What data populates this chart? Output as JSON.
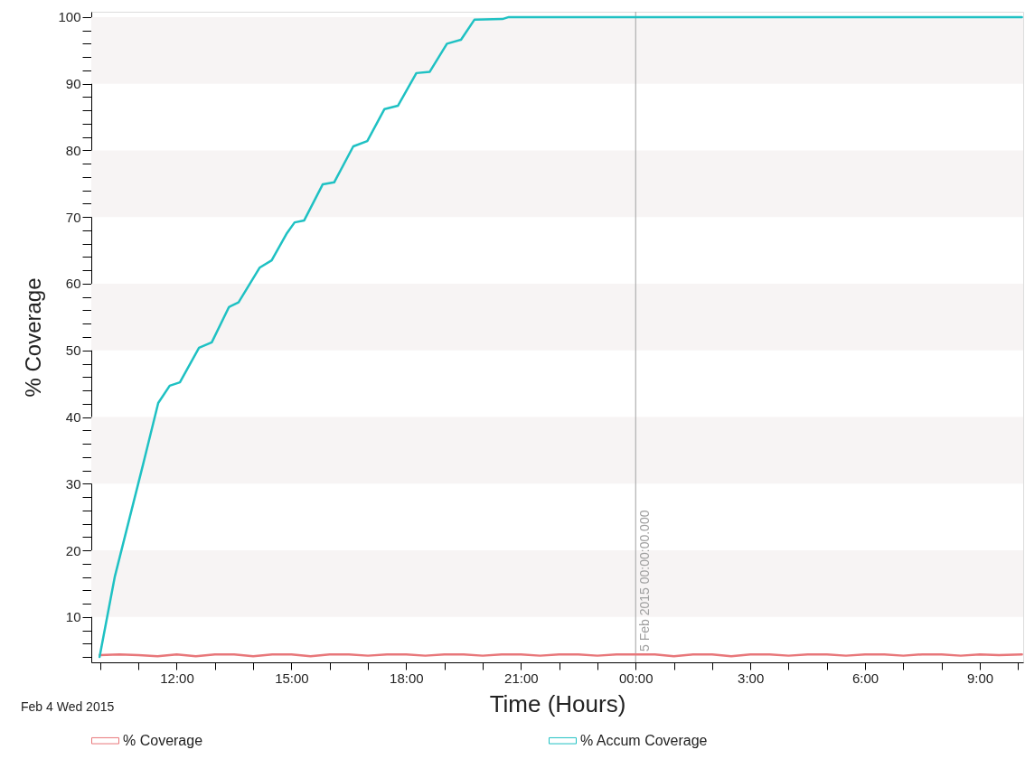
{
  "chart_data": {
    "type": "line",
    "xlabel": "Time (Hours)",
    "ylabel": "% Coverage",
    "xlim": [
      "2015-02-04T09:46",
      "2015-02-05T10:08"
    ],
    "ylim": [
      3.2,
      100.8
    ],
    "xticks": [
      {
        "value": "2015-02-04T10:00",
        "label": null
      },
      {
        "value": "2015-02-04T11:00",
        "label": null
      },
      {
        "value": "2015-02-04T12:00",
        "label": "12:00"
      },
      {
        "value": "2015-02-04T13:00",
        "label": null
      },
      {
        "value": "2015-02-04T14:00",
        "label": null
      },
      {
        "value": "2015-02-04T15:00",
        "label": "15:00"
      },
      {
        "value": "2015-02-04T16:00",
        "label": null
      },
      {
        "value": "2015-02-04T17:00",
        "label": null
      },
      {
        "value": "2015-02-04T18:00",
        "label": "18:00"
      },
      {
        "value": "2015-02-04T19:00",
        "label": null
      },
      {
        "value": "2015-02-04T20:00",
        "label": null
      },
      {
        "value": "2015-02-04T21:00",
        "label": "21:00"
      },
      {
        "value": "2015-02-04T22:00",
        "label": null
      },
      {
        "value": "2015-02-04T23:00",
        "label": null
      },
      {
        "value": "2015-02-05T00:00",
        "label": "00:00"
      },
      {
        "value": "2015-02-05T01:00",
        "label": null
      },
      {
        "value": "2015-02-05T02:00",
        "label": null
      },
      {
        "value": "2015-02-05T03:00",
        "label": "3:00"
      },
      {
        "value": "2015-02-05T04:00",
        "label": null
      },
      {
        "value": "2015-02-05T05:00",
        "label": null
      },
      {
        "value": "2015-02-05T06:00",
        "label": "6:00"
      },
      {
        "value": "2015-02-05T07:00",
        "label": null
      },
      {
        "value": "2015-02-05T08:00",
        "label": null
      },
      {
        "value": "2015-02-05T09:00",
        "label": "9:00"
      },
      {
        "value": "2015-02-05T10:00",
        "label": null
      }
    ],
    "yticks": [
      {
        "value": 4,
        "label": null
      },
      {
        "value": 6,
        "label": null
      },
      {
        "value": 8,
        "label": null
      },
      10,
      {
        "value": 12,
        "label": null
      },
      {
        "value": 14,
        "label": null
      },
      {
        "value": 16,
        "label": null
      },
      {
        "value": 18,
        "label": null
      },
      20,
      {
        "value": 22,
        "label": null
      },
      {
        "value": 24,
        "label": null
      },
      {
        "value": 26,
        "label": null
      },
      {
        "value": 28,
        "label": null
      },
      30,
      {
        "value": 32,
        "label": null
      },
      {
        "value": 34,
        "label": null
      },
      {
        "value": 36,
        "label": null
      },
      {
        "value": 38,
        "label": null
      },
      40,
      {
        "value": 42,
        "label": null
      },
      {
        "value": 44,
        "label": null
      },
      {
        "value": 46,
        "label": null
      },
      {
        "value": 48,
        "label": null
      },
      50,
      {
        "value": 52,
        "label": null
      },
      {
        "value": 54,
        "label": null
      },
      {
        "value": 56,
        "label": null
      },
      {
        "value": 58,
        "label": null
      },
      60,
      {
        "value": 62,
        "label": null
      },
      {
        "value": 64,
        "label": null
      },
      {
        "value": 66,
        "label": null
      },
      {
        "value": 68,
        "label": null
      },
      70,
      {
        "value": 72,
        "label": null
      },
      {
        "value": 74,
        "label": null
      },
      {
        "value": 76,
        "label": null
      },
      {
        "value": 78,
        "label": null
      },
      80,
      {
        "value": 82,
        "label": null
      },
      {
        "value": 84,
        "label": null
      },
      {
        "value": 86,
        "label": null
      },
      {
        "value": 88,
        "label": null
      },
      90,
      {
        "value": 92,
        "label": null
      },
      {
        "value": 94,
        "label": null
      },
      {
        "value": 96,
        "label": null
      },
      {
        "value": 98,
        "label": null
      },
      100
    ],
    "grid": false,
    "legend": "bottom",
    "marker": "none",
    "line_style": "solid",
    "series": [
      {
        "name": "% Coverage",
        "color": "#e8777a",
        "x": [
          "2015-02-04T09:59",
          "2015-02-04T10:30",
          "2015-02-04T11:00",
          "2015-02-04T11:30",
          "2015-02-04T12:00",
          "2015-02-04T12:30",
          "2015-02-04T13:00",
          "2015-02-04T13:30",
          "2015-02-04T14:00",
          "2015-02-04T14:30",
          "2015-02-04T15:00",
          "2015-02-04T15:30",
          "2015-02-04T16:00",
          "2015-02-04T16:30",
          "2015-02-04T17:00",
          "2015-02-04T17:30",
          "2015-02-04T18:00",
          "2015-02-04T18:30",
          "2015-02-04T19:00",
          "2015-02-04T19:30",
          "2015-02-04T20:00",
          "2015-02-04T20:30",
          "2015-02-04T21:00",
          "2015-02-04T21:30",
          "2015-02-04T22:00",
          "2015-02-04T22:30",
          "2015-02-04T23:00",
          "2015-02-04T23:30",
          "2015-02-05T00:00",
          "2015-02-05T00:30",
          "2015-02-05T01:00",
          "2015-02-05T01:30",
          "2015-02-05T02:00",
          "2015-02-05T02:30",
          "2015-02-05T03:00",
          "2015-02-05T03:30",
          "2015-02-05T04:00",
          "2015-02-05T04:30",
          "2015-02-05T05:00",
          "2015-02-05T05:30",
          "2015-02-05T06:00",
          "2015-02-05T06:30",
          "2015-02-05T07:00",
          "2015-02-05T07:30",
          "2015-02-05T08:00",
          "2015-02-05T08:30",
          "2015-02-05T09:00",
          "2015-02-05T09:30",
          "2015-02-05T10:06"
        ],
        "values": [
          4.3,
          4.4,
          4.3,
          4.1,
          4.4,
          4.1,
          4.4,
          4.4,
          4.1,
          4.4,
          4.4,
          4.1,
          4.4,
          4.4,
          4.2,
          4.4,
          4.4,
          4.2,
          4.4,
          4.4,
          4.2,
          4.4,
          4.4,
          4.2,
          4.4,
          4.4,
          4.2,
          4.4,
          4.4,
          4.4,
          4.1,
          4.4,
          4.4,
          4.1,
          4.4,
          4.4,
          4.2,
          4.4,
          4.4,
          4.2,
          4.4,
          4.4,
          4.2,
          4.4,
          4.4,
          4.2,
          4.4,
          4.3,
          4.4
        ]
      },
      {
        "name": "% Accum Coverage",
        "color": "#1fc1c3",
        "x": [
          "2015-02-04T09:59",
          "2015-02-04T10:23",
          "2015-02-04T11:07",
          "2015-02-04T11:31",
          "2015-02-04T11:49",
          "2015-02-04T12:05",
          "2015-02-04T12:35",
          "2015-02-04T12:55",
          "2015-02-04T13:22",
          "2015-02-04T13:37",
          "2015-02-04T14:10",
          "2015-02-04T14:29",
          "2015-02-04T14:53",
          "2015-02-04T15:05",
          "2015-02-04T15:20",
          "2015-02-04T15:49",
          "2015-02-04T16:07",
          "2015-02-04T16:37",
          "2015-02-04T16:59",
          "2015-02-04T17:26",
          "2015-02-04T17:47",
          "2015-02-04T18:16",
          "2015-02-04T18:37",
          "2015-02-04T19:04",
          "2015-02-04T19:26",
          "2015-02-04T19:47",
          "2015-02-04T20:31",
          "2015-02-04T20:41",
          "2015-02-05T10:06"
        ],
        "values": [
          4.0,
          16.1,
          32.8,
          42.1,
          44.7,
          45.2,
          50.4,
          51.2,
          56.5,
          57.2,
          62.4,
          63.5,
          67.6,
          69.2,
          69.5,
          74.9,
          75.2,
          80.6,
          81.4,
          86.2,
          86.7,
          91.6,
          91.8,
          96.0,
          96.6,
          99.6,
          99.7,
          100.0,
          100.0
        ]
      }
    ],
    "bands": [
      {
        "axis": "y",
        "from": 10,
        "to": 20,
        "color": "#f7f4f4"
      },
      {
        "axis": "y",
        "from": 30,
        "to": 40,
        "color": "#f7f4f4"
      },
      {
        "axis": "y",
        "from": 50,
        "to": 60,
        "color": "#f7f4f4"
      },
      {
        "axis": "y",
        "from": 70,
        "to": 80,
        "color": "#f7f4f4"
      },
      {
        "axis": "y",
        "from": 90,
        "to": 100,
        "color": "#f7f4f4"
      }
    ],
    "ref_lines": [
      {
        "axis": "x",
        "value": "2015-02-05T00:00",
        "label": "5 Feb 2015 00:00:00.000",
        "color": "#a0a0a0",
        "line_style": "solid"
      }
    ],
    "annotations": [
      "Feb 4 Wed 2015"
    ]
  }
}
